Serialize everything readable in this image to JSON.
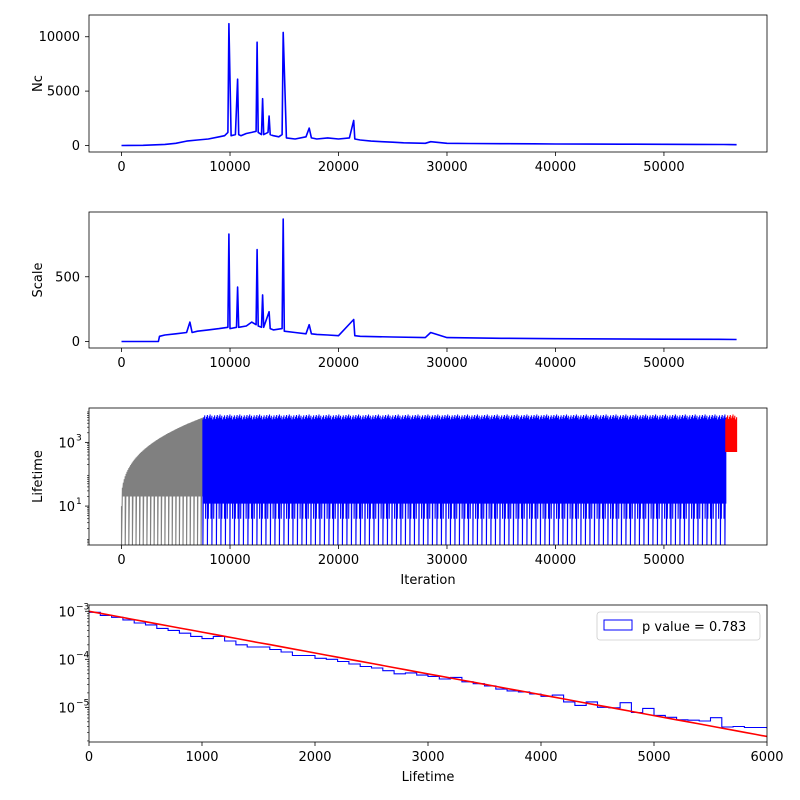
{
  "chart_data": [
    {
      "type": "line",
      "title": "",
      "xlabel": "",
      "ylabel": "Nc",
      "xlim": [
        -3000,
        59500
      ],
      "ylim": [
        -600,
        12000
      ],
      "xticks": [
        0,
        10000,
        20000,
        30000,
        40000,
        50000
      ],
      "xtick_labels": [
        "0",
        "10000",
        "20000",
        "30000",
        "40000",
        "50000"
      ],
      "yticks": [
        0,
        5000,
        10000
      ],
      "ytick_labels": [
        "0",
        "5000",
        "10000"
      ],
      "color": "#0000ff",
      "series": [
        {
          "x": [
            0,
            2000,
            4000,
            5000,
            6000,
            7000,
            8000,
            9000,
            9500,
            9800,
            9900,
            10100,
            10500,
            10700,
            10800,
            11000,
            11500,
            12000,
            12400,
            12500,
            12600,
            12900,
            13000,
            13100,
            13500,
            13600,
            13700,
            14000,
            14500,
            14800,
            14900,
            15200,
            16000,
            17000,
            17300,
            17500,
            18000,
            19000,
            20000,
            21000,
            21400,
            21500,
            22000,
            23000,
            24000,
            25000,
            26000,
            28000,
            28500,
            30000,
            32000,
            35000,
            38000,
            40000,
            43000,
            46000,
            50000,
            53000,
            55500,
            56000,
            56700
          ],
          "y": [
            0,
            20,
            100,
            200,
            400,
            500,
            600,
            800,
            900,
            1200,
            11200,
            900,
            1000,
            6100,
            1000,
            900,
            1100,
            1200,
            1300,
            9500,
            1200,
            1000,
            4300,
            1000,
            1200,
            2700,
            1000,
            900,
            800,
            1000,
            10400,
            700,
            600,
            800,
            1600,
            700,
            600,
            700,
            600,
            700,
            2300,
            600,
            500,
            400,
            350,
            300,
            250,
            200,
            350,
            200,
            180,
            160,
            150,
            140,
            130,
            120,
            110,
            100,
            90,
            80,
            70
          ]
        }
      ]
    },
    {
      "type": "line",
      "title": "",
      "xlabel": "",
      "ylabel": "Scale",
      "xlim": [
        -3000,
        59500
      ],
      "ylim": [
        -50,
        1000
      ],
      "xticks": [
        0,
        10000,
        20000,
        30000,
        40000,
        50000
      ],
      "xtick_labels": [
        "0",
        "10000",
        "20000",
        "30000",
        "40000",
        "50000"
      ],
      "yticks": [
        0,
        500
      ],
      "ytick_labels": [
        "0",
        "500"
      ],
      "color": "#0000ff",
      "series": [
        {
          "x": [
            0,
            3400,
            3500,
            4000,
            5000,
            6000,
            6300,
            6500,
            7000,
            8000,
            9000,
            9800,
            9900,
            10000,
            10600,
            10700,
            10800,
            11500,
            12000,
            12400,
            12500,
            12600,
            12900,
            13000,
            13100,
            13600,
            13700,
            14000,
            14800,
            14900,
            15000,
            16000,
            17000,
            17300,
            17500,
            18000,
            19000,
            20000,
            21400,
            21500,
            22000,
            25000,
            28000,
            28500,
            30000,
            35000,
            40000,
            45000,
            50000,
            55000,
            56700
          ],
          "y": [
            0,
            0,
            40,
            50,
            60,
            70,
            150,
            70,
            80,
            90,
            100,
            110,
            830,
            100,
            110,
            420,
            110,
            120,
            150,
            130,
            710,
            120,
            110,
            360,
            110,
            230,
            100,
            90,
            100,
            945,
            80,
            70,
            60,
            130,
            60,
            55,
            50,
            45,
            170,
            45,
            40,
            35,
            30,
            70,
            30,
            25,
            22,
            20,
            18,
            17,
            16
          ]
        }
      ]
    },
    {
      "type": "line",
      "title": "",
      "xlabel": "Iteration",
      "ylabel": "Lifetime",
      "yscale": "log",
      "xlim": [
        -3000,
        59500
      ],
      "ylim": [
        0.6,
        12000
      ],
      "xticks": [
        0,
        10000,
        20000,
        30000,
        40000,
        50000
      ],
      "xtick_labels": [
        "0",
        "10000",
        "20000",
        "30000",
        "40000",
        "50000"
      ],
      "yticks": [
        10,
        1000
      ],
      "ytick_labels": [
        "10^1",
        "10^3"
      ],
      "ytick_base": "10",
      "ytick_exponents": [
        "1",
        "3"
      ],
      "segments": [
        {
          "color": "#808080",
          "x_range": [
            0,
            7500
          ],
          "y_top_start": 10,
          "y_top_end": 6000,
          "y_bottom": 0.6
        },
        {
          "color": "#0000ff",
          "x_range": [
            7500,
            55700
          ],
          "y_top": 7000,
          "y_bottom": 0.6
        },
        {
          "color": "#ff0000",
          "x_range": [
            55700,
            56700
          ],
          "y_top": 7000,
          "y_bottom": 500
        }
      ]
    },
    {
      "type": "bar",
      "histtype": "step",
      "title": "",
      "xlabel": "Lifetime",
      "ylabel": "",
      "yscale": "log",
      "xlim": [
        0,
        6000
      ],
      "ylim": [
        1.9e-06,
        0.00135
      ],
      "xticks": [
        0,
        1000,
        2000,
        3000,
        4000,
        5000,
        6000
      ],
      "xtick_labels": [
        "0",
        "1000",
        "2000",
        "3000",
        "4000",
        "5000",
        "6000"
      ],
      "yticks": [
        1e-05,
        0.0001,
        0.001
      ],
      "ytick_base": "10",
      "ytick_exponents": [
        "−5",
        "−4",
        "−3"
      ],
      "hist_color": "#0000ff",
      "fit_color": "#ff0000",
      "legend": {
        "label": "p value = 0.783",
        "position": "top-right"
      },
      "bin_width": 100,
      "fit": {
        "type": "exponential",
        "y0": 0.001,
        "scale": 1000
      },
      "hist_counts": [
        0.00095,
        0.00082,
        0.00075,
        0.00066,
        0.00057,
        0.00052,
        0.00044,
        0.0004,
        0.00035,
        0.0003,
        0.00027,
        0.0003,
        0.00024,
        0.0002,
        0.00018,
        0.00018,
        0.00016,
        0.000142,
        0.00012,
        0.00012,
        0.000105,
        0.0001,
        9e-05,
        8e-05,
        7.1e-05,
        6.6e-05,
        5.8e-05,
        5e-05,
        5.2e-05,
        4.7e-05,
        4.4e-05,
        3.9e-05,
        4.2e-05,
        3.4e-05,
        3.1e-05,
        2.8e-05,
        2.4e-05,
        2.2e-05,
        2.1e-05,
        1.9e-05,
        1.7e-05,
        1.8e-05,
        1.3e-05,
        1.1e-05,
        1.3e-05,
        1e-05,
        9.8e-06,
        1.25e-05,
        7.8e-06,
        9.5e-06,
        6.8e-06,
        6.2e-06,
        5.5e-06,
        5.4e-06,
        5.2e-06,
        6.1e-06,
        3.9e-06,
        4e-06,
        3.8e-06,
        3.8e-06,
        3.7e-06
      ]
    }
  ]
}
